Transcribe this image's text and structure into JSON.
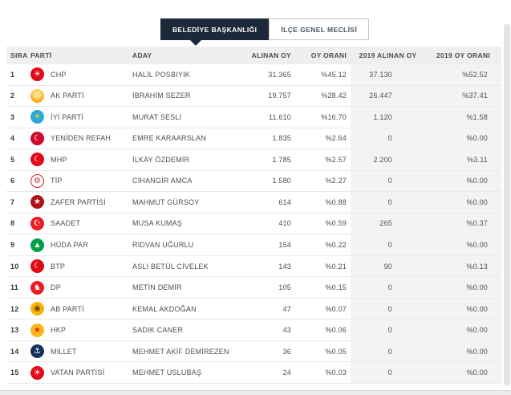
{
  "tabs": [
    {
      "label": "BELEDİYE BAŞKANLIĞI",
      "active": true
    },
    {
      "label": "İLÇE GENEL MECLİSİ",
      "active": false
    }
  ],
  "colors": {
    "active_tab": "#1b2938",
    "header_bg": "#efefef",
    "gray_column_bg": "#f3f3f3",
    "row_separator": "#e9e9e9"
  },
  "table": {
    "columns": [
      "SIRA",
      "PARTİ",
      "ADAY",
      "ALINAN OY",
      "OY ORANI",
      "2019 ALINAN OY",
      "2019 OY ORANI"
    ],
    "rows": [
      {
        "rank": "1",
        "party": "CHP",
        "candidate": "HALİL POSBIYIK",
        "votes": "31.365",
        "pct": "%45.12",
        "votes2019": "37.130",
        "pct2019": "%52.52",
        "icon": {
          "bg": "#e30a17",
          "fg": "#ffffff",
          "glyph": "✳"
        }
      },
      {
        "rank": "2",
        "party": "AK PARTİ",
        "candidate": "İBRAHİM SEZER",
        "votes": "19.757",
        "pct": "%28.42",
        "votes2019": "26.447",
        "pct2019": "%37.41",
        "icon": {
          "bg": "radial-gradient(circle at 50% 38%, #ffe08a 25%, #f6a800 72%)",
          "fg": "#ffffff",
          "glyph": ""
        }
      },
      {
        "rank": "3",
        "party": "İYİ PARTİ",
        "candidate": "MURAT SESLİ",
        "votes": "11.610",
        "pct": "%16.70",
        "votes2019": "1.120",
        "pct2019": "%1.58",
        "icon": {
          "bg": "#29a8e0",
          "fg": "#ffd400",
          "glyph": "☀"
        }
      },
      {
        "rank": "4",
        "party": "YENİDEN REFAH",
        "candidate": "EMRE KARAARSLAN",
        "votes": "1.835",
        "pct": "%2.64",
        "votes2019": "0",
        "pct2019": "%0.00",
        "icon": {
          "bg": "#cf0a2c",
          "fg": "#ffffff",
          "glyph": "☾"
        }
      },
      {
        "rank": "5",
        "party": "MHP",
        "candidate": "İLKAY ÖZDEMİR",
        "votes": "1.785",
        "pct": "%2.57",
        "votes2019": "2.200",
        "pct2019": "%3.11",
        "icon": {
          "bg": "#e30a17",
          "fg": "#ffffff",
          "glyph": "☾"
        }
      },
      {
        "rank": "6",
        "party": "TİP",
        "candidate": "CİHANGİR AMCA",
        "votes": "1.580",
        "pct": "%2.27",
        "votes2019": "0",
        "pct2019": "%0.00",
        "icon": {
          "bg": "#ffffff",
          "fg": "#d21f26",
          "glyph": "⚙",
          "ring": "#d21f26"
        }
      },
      {
        "rank": "7",
        "party": "ZAFER PARTİSİ",
        "candidate": "MAHMUT GÜRSOY",
        "votes": "614",
        "pct": "%0.88",
        "votes2019": "0",
        "pct2019": "%0.00",
        "icon": {
          "bg": "#b01116",
          "fg": "#ffffff",
          "glyph": "★"
        }
      },
      {
        "rank": "8",
        "party": "SAADET",
        "candidate": "MUSA KUMAŞ",
        "votes": "410",
        "pct": "%0.59",
        "votes2019": "265",
        "pct2019": "%0.37",
        "icon": {
          "bg": "#ed1b24",
          "fg": "#ffffff",
          "glyph": "☪"
        }
      },
      {
        "rank": "9",
        "party": "HÜDA PAR",
        "candidate": "RIDVAN UĞURLU",
        "votes": "154",
        "pct": "%0.22",
        "votes2019": "0",
        "pct2019": "%0.00",
        "icon": {
          "bg": "#00a04a",
          "fg": "#ffffff",
          "glyph": "▲"
        }
      },
      {
        "rank": "10",
        "party": "BTP",
        "candidate": "ASLI BETÜL CİVELEK",
        "votes": "143",
        "pct": "%0.21",
        "votes2019": "90",
        "pct2019": "%0.13",
        "icon": {
          "bg": "#e30a17",
          "fg": "#ffffff",
          "glyph": "☾"
        }
      },
      {
        "rank": "11",
        "party": "DP",
        "candidate": "METİN DEMİR",
        "votes": "105",
        "pct": "%0.15",
        "votes2019": "0",
        "pct2019": "%0.00",
        "icon": {
          "bg": "#ed1c24",
          "fg": "#ffffff",
          "glyph": "♞"
        }
      },
      {
        "rank": "12",
        "party": "AB PARTİ",
        "candidate": "KEMAL AKDOĞAN",
        "votes": "47",
        "pct": "%0.07",
        "votes2019": "0",
        "pct2019": "%0.00",
        "icon": {
          "bg": "#f9b200",
          "fg": "#6b4300",
          "glyph": "◉"
        }
      },
      {
        "rank": "13",
        "party": "HKP",
        "candidate": "SADIK CANER",
        "votes": "43",
        "pct": "%0.06",
        "votes2019": "0",
        "pct2019": "%0.00",
        "icon": {
          "bg": "#fcb61a",
          "fg": "#e3231a",
          "glyph": "★"
        }
      },
      {
        "rank": "14",
        "party": "MİLLET",
        "candidate": "MEHMET AKİF DEMİREZEN",
        "votes": "36",
        "pct": "%0.05",
        "votes2019": "0",
        "pct2019": "%0.00",
        "icon": {
          "bg": "#16325c",
          "fg": "#ffffff",
          "glyph": "⚓"
        }
      },
      {
        "rank": "15",
        "party": "VATAN PARTİSİ",
        "candidate": "MEHMET USLUBAŞ",
        "votes": "24",
        "pct": "%0.03",
        "votes2019": "0",
        "pct2019": "%0.00",
        "icon": {
          "bg": "#e30a17",
          "fg": "#ffffff",
          "glyph": "☀"
        }
      }
    ]
  }
}
